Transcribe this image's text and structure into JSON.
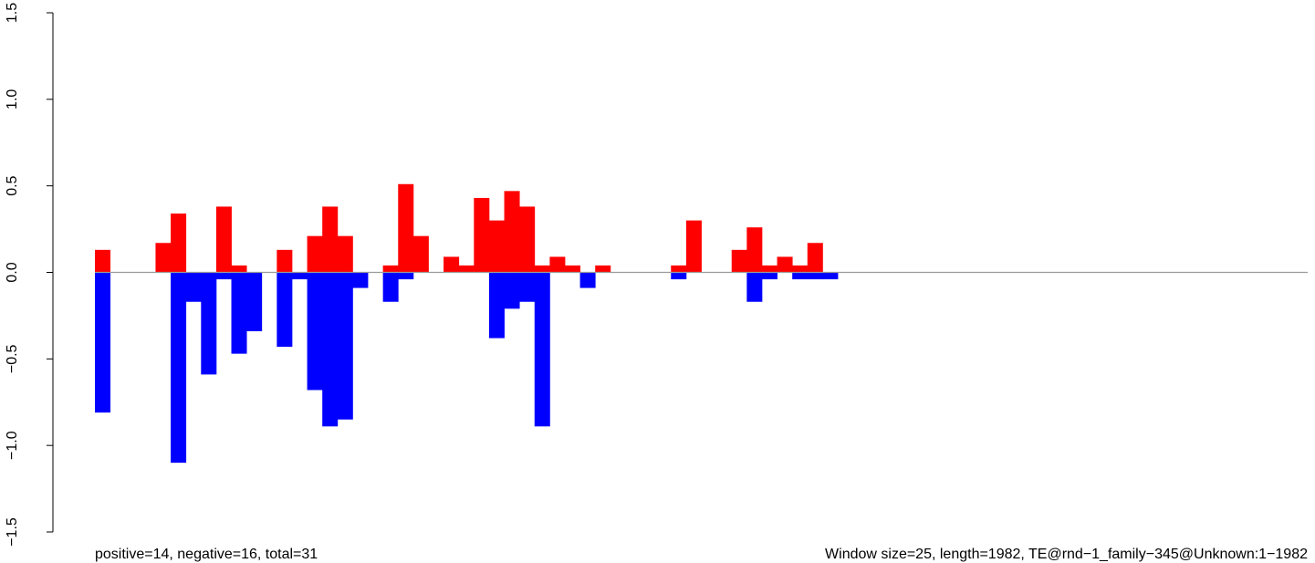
{
  "chart_data": {
    "type": "bar",
    "title": "",
    "xlabel": "",
    "ylabel": "",
    "ylim": [
      -1.5,
      1.5
    ],
    "yticks": [
      {
        "value": -1.5,
        "label": "−1.5"
      },
      {
        "value": -1.0,
        "label": "−1.0"
      },
      {
        "value": -0.5,
        "label": "−0.5"
      },
      {
        "value": 0.0,
        "label": "0.0"
      },
      {
        "value": 0.5,
        "label": "0.5"
      },
      {
        "value": 1.0,
        "label": "1.0"
      },
      {
        "value": 1.5,
        "label": "1.5"
      }
    ],
    "grid": false,
    "bins": 80,
    "series": [
      {
        "color": "#ff0000",
        "values": [
          0.13,
          0,
          0,
          0,
          0.17,
          0.34,
          0,
          0,
          0.38,
          0.04,
          0,
          0,
          0.13,
          0,
          0.21,
          0.38,
          0.21,
          0,
          0,
          0.04,
          0.51,
          0.21,
          0,
          0.09,
          0.04,
          0.43,
          0.3,
          0.47,
          0.38,
          0.04,
          0.09,
          0.04,
          0,
          0.04,
          0,
          0,
          0,
          0,
          0.04,
          0.3,
          0,
          0,
          0.13,
          0.26,
          0.04,
          0.09,
          0.04,
          0.17,
          0,
          0,
          0,
          0,
          0,
          0,
          0,
          0,
          0,
          0,
          0,
          0,
          0,
          0,
          0,
          0,
          0,
          0,
          0,
          0,
          0,
          0,
          0,
          0,
          0,
          0,
          0,
          0,
          0,
          0,
          0,
          0
        ]
      },
      {
        "color": "#0000ff",
        "values": [
          -0.81,
          0,
          0,
          0,
          0,
          -1.1,
          -0.17,
          -0.59,
          -0.04,
          -0.47,
          -0.34,
          0,
          -0.43,
          -0.04,
          -0.68,
          -0.89,
          -0.85,
          -0.09,
          0,
          -0.17,
          -0.04,
          0,
          0,
          0,
          0,
          0,
          -0.38,
          -0.21,
          -0.17,
          -0.89,
          0,
          0,
          -0.09,
          0,
          0,
          0,
          0,
          0,
          -0.04,
          0,
          0,
          0,
          0,
          -0.17,
          -0.04,
          0,
          -0.04,
          -0.04,
          -0.04,
          0,
          0,
          0,
          0,
          0,
          0,
          0,
          0,
          0,
          0,
          0,
          0,
          0,
          0,
          0,
          0,
          0,
          0,
          0,
          0,
          0,
          0,
          0,
          0,
          0,
          0,
          0,
          0,
          0,
          0,
          0
        ]
      }
    ],
    "zero_line_color": "#9a9a9a"
  },
  "footer": {
    "left": "positive=14, negative=16, total=31",
    "right": "Window size=25, length=1982, TE@rnd−1_family−345@Unknown:1−1982"
  }
}
